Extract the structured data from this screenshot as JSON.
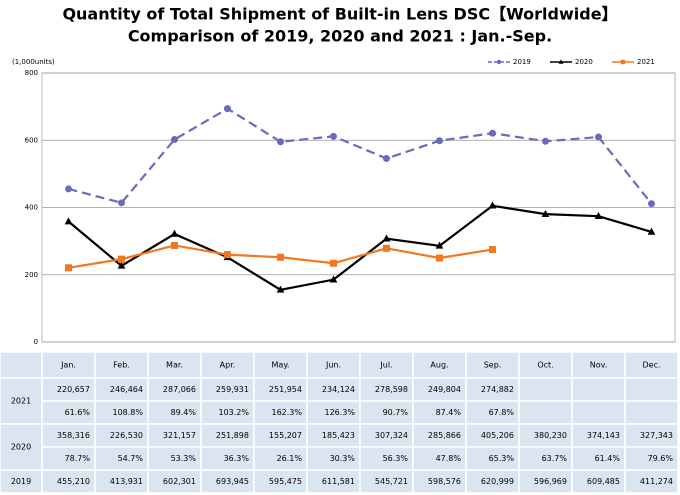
{
  "chart_data": {
    "type": "line",
    "title": "Quantity of Total Shipment of Built-in Lens DSC【Worldwide】",
    "subtitle": "Comparison of 2019, 2020 and 2021 : Jan.-Sep.",
    "y_label": "(1,000units)",
    "categories": [
      "Jan.",
      "Feb.",
      "Mar.",
      "Apr.",
      "May.",
      "Jun.",
      "Jul.",
      "Aug.",
      "Sep.",
      "Oct.",
      "Nov.",
      "Dec."
    ],
    "ylim": [
      0,
      800
    ],
    "yticks": [
      0,
      200,
      400,
      600,
      800
    ],
    "grid": true,
    "legend": "top-right",
    "series": [
      {
        "name": "2019",
        "color": "#6a6abf",
        "dash": true,
        "marker": "circle",
        "values": [
          455.21,
          413.931,
          602.301,
          693.945,
          595.475,
          611.581,
          545.721,
          598.576,
          620.999,
          596.969,
          609.485,
          411.274
        ],
        "value_labels": [
          "455,210",
          "413,931",
          "602,301",
          "693,945",
          "595,475",
          "611,581",
          "545,721",
          "598,576",
          "620,999",
          "596,969",
          "609,485",
          "411,274"
        ]
      },
      {
        "name": "2020",
        "color": "#000000",
        "dash": false,
        "marker": "triangle",
        "values": [
          358.316,
          226.53,
          321.157,
          251.898,
          155.207,
          185.423,
          307.324,
          285.866,
          405.206,
          380.23,
          374.143,
          327.343
        ],
        "value_labels": [
          "358,316",
          "226,530",
          "321,157",
          "251,898",
          "155,207",
          "185,423",
          "307,324",
          "285,866",
          "405,206",
          "380,230",
          "374,143",
          "327,343"
        ]
      },
      {
        "name": "2021",
        "color": "#f07820",
        "dash": false,
        "marker": "square",
        "values": [
          220.657,
          246.464,
          287.066,
          259.931,
          251.954,
          234.124,
          278.598,
          249.804,
          274.882,
          null,
          null,
          null
        ],
        "value_labels": [
          "220,657",
          "246,464",
          "287,066",
          "259,931",
          "251,954",
          "234,124",
          "278,598",
          "249,804",
          "274,882",
          null,
          null,
          null
        ]
      }
    ]
  },
  "table": {
    "percents": [
      [
        "61.6%",
        "108.8%",
        "89.4%",
        "103.2%",
        "162.3%",
        "126.3%",
        "90.7%",
        "87.4%",
        "67.8%"
      ],
      [
        "78.7%",
        "54.7%",
        "53.3%",
        "36.3%",
        "26.1%",
        "30.3%",
        "56.3%",
        "47.8%",
        "65.3%",
        "63.7%",
        "61.4%",
        "79.6%"
      ]
    ]
  }
}
